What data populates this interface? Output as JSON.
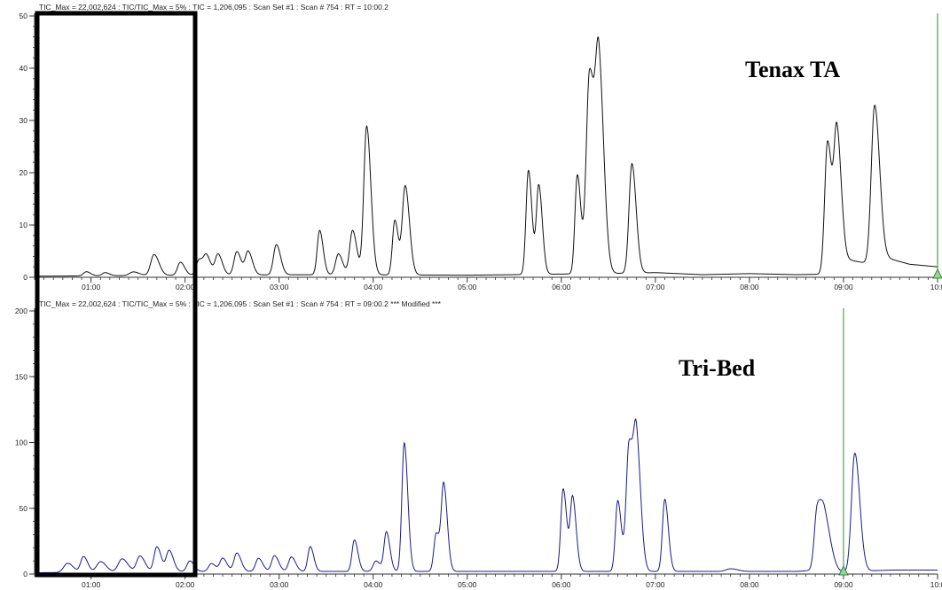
{
  "chart_data": [
    {
      "type": "line",
      "header": "TIC_Max = 22,002,624 : TIC/TIC_Max = 5% : TIC = 1,206,095 : Scan Set #1 : Scan #   754 : RT = 10:00.2",
      "annotation": "Tenax TA",
      "x_unit": "retention time (min)",
      "xlim": [
        0.4,
        10.0
      ],
      "ylim": [
        0,
        50
      ],
      "x_ticks": [
        {
          "value": 1,
          "label": "01:00"
        },
        {
          "value": 2,
          "label": "02:00"
        },
        {
          "value": 3,
          "label": "03:00"
        },
        {
          "value": 4,
          "label": "04:00"
        },
        {
          "value": 5,
          "label": "05:00"
        },
        {
          "value": 6,
          "label": "06:00"
        },
        {
          "value": 7,
          "label": "07:00"
        },
        {
          "value": 8,
          "label": "08:00"
        },
        {
          "value": 9,
          "label": "09:00"
        },
        {
          "value": 10,
          "label": "10:0"
        }
      ],
      "y_ticks": [
        {
          "value": 0,
          "label": "0"
        },
        {
          "value": 10,
          "label": "10"
        },
        {
          "value": 20,
          "label": "20"
        },
        {
          "value": 30,
          "label": "30"
        },
        {
          "value": 40,
          "label": "40"
        },
        {
          "value": 50,
          "label": "50"
        }
      ],
      "marker_rt": 10.0,
      "baseline": [
        [
          0.4,
          0.2
        ],
        [
          2.0,
          0.4
        ],
        [
          3.5,
          0.5
        ],
        [
          5.0,
          0.4
        ],
        [
          5.5,
          0.5
        ],
        [
          6.8,
          0.8
        ],
        [
          7.0,
          0.9
        ],
        [
          7.5,
          0.5
        ],
        [
          8.0,
          0.7
        ],
        [
          8.5,
          0.5
        ],
        [
          8.8,
          0.6
        ],
        [
          9.0,
          3.5
        ],
        [
          9.3,
          2.5
        ],
        [
          9.4,
          4.0
        ],
        [
          9.7,
          2.5
        ],
        [
          10.0,
          2.0
        ]
      ],
      "peaks": [
        [
          0.95,
          0.8,
          0.03
        ],
        [
          1.15,
          0.6,
          0.03
        ],
        [
          1.45,
          0.7,
          0.04
        ],
        [
          1.67,
          4.0,
          0.035
        ],
        [
          1.95,
          2.5,
          0.03
        ],
        [
          2.15,
          3.0,
          0.03
        ],
        [
          2.23,
          3.4,
          0.03
        ],
        [
          2.35,
          4.0,
          0.03
        ],
        [
          2.55,
          4.5,
          0.03
        ],
        [
          2.67,
          4.5,
          0.03
        ],
        [
          2.97,
          5.8,
          0.03
        ],
        [
          3.43,
          8.5,
          0.025
        ],
        [
          3.63,
          4.0,
          0.03
        ],
        [
          3.78,
          8.5,
          0.03
        ],
        [
          3.93,
          28.5,
          0.03
        ],
        [
          4.23,
          10.5,
          0.025
        ],
        [
          4.34,
          17.0,
          0.03
        ],
        [
          5.65,
          20.0,
          0.025
        ],
        [
          5.76,
          17.0,
          0.025
        ],
        [
          6.17,
          19.0,
          0.025
        ],
        [
          6.3,
          38.5,
          0.035
        ],
        [
          6.4,
          38.0,
          0.035
        ],
        [
          6.75,
          21.0,
          0.03
        ],
        [
          8.83,
          25.0,
          0.03
        ],
        [
          8.93,
          25.0,
          0.03
        ],
        [
          9.33,
          30.0,
          0.035
        ]
      ],
      "line_color": "#111111"
    },
    {
      "type": "line",
      "header": "TIC_Max = 22,002,624 : TIC/TIC_Max = 5% : TIC = 1,206,095 : Scan Set #1 : Scan #   754 : RT = 09:00.2 *** Modified ***",
      "annotation": "Tri-Bed",
      "x_unit": "retention time (min)",
      "xlim": [
        0.4,
        10.0
      ],
      "ylim": [
        0,
        200
      ],
      "x_ticks": [
        {
          "value": 1,
          "label": "01:00"
        },
        {
          "value": 2,
          "label": "02:00"
        },
        {
          "value": 3,
          "label": "03:00"
        },
        {
          "value": 4,
          "label": "04:00"
        },
        {
          "value": 5,
          "label": "05:00"
        },
        {
          "value": 6,
          "label": "06:00"
        },
        {
          "value": 7,
          "label": "07:00"
        },
        {
          "value": 8,
          "label": "08:00"
        },
        {
          "value": 9,
          "label": "09:00"
        },
        {
          "value": 10,
          "label": "10:0"
        }
      ],
      "y_ticks": [
        {
          "value": 0,
          "label": "0"
        },
        {
          "value": 50,
          "label": "50"
        },
        {
          "value": 100,
          "label": "100"
        },
        {
          "value": 150,
          "label": "150"
        },
        {
          "value": 200,
          "label": "200"
        }
      ],
      "marker_rt": 9.0,
      "baseline": [
        [
          0.4,
          1
        ],
        [
          2.0,
          2
        ],
        [
          5.0,
          2
        ],
        [
          5.5,
          2
        ],
        [
          7.0,
          2
        ],
        [
          8.5,
          2
        ],
        [
          8.9,
          4
        ],
        [
          9.0,
          1
        ],
        [
          9.1,
          2
        ],
        [
          9.5,
          3
        ],
        [
          10.0,
          3
        ]
      ],
      "peaks": [
        [
          0.75,
          7,
          0.04
        ],
        [
          0.92,
          12,
          0.03
        ],
        [
          1.1,
          8,
          0.04
        ],
        [
          1.33,
          10,
          0.04
        ],
        [
          1.52,
          12,
          0.035
        ],
        [
          1.7,
          19,
          0.03
        ],
        [
          1.83,
          16,
          0.03
        ],
        [
          2.05,
          8,
          0.03
        ],
        [
          2.28,
          6,
          0.03
        ],
        [
          2.4,
          10,
          0.03
        ],
        [
          2.55,
          14,
          0.03
        ],
        [
          2.78,
          10,
          0.03
        ],
        [
          2.95,
          12,
          0.03
        ],
        [
          3.13,
          11,
          0.03
        ],
        [
          3.33,
          19,
          0.025
        ],
        [
          3.8,
          24,
          0.025
        ],
        [
          4.03,
          8,
          0.03
        ],
        [
          4.14,
          30,
          0.025
        ],
        [
          4.33,
          98,
          0.025
        ],
        [
          4.67,
          29,
          0.025
        ],
        [
          4.75,
          65,
          0.025
        ],
        [
          6.02,
          63,
          0.025
        ],
        [
          6.12,
          56,
          0.025
        ],
        [
          6.6,
          54,
          0.025
        ],
        [
          6.72,
          97,
          0.03
        ],
        [
          6.8,
          92,
          0.03
        ],
        [
          7.1,
          55,
          0.025
        ],
        [
          7.8,
          2,
          0.05
        ],
        [
          8.72,
          45,
          0.03
        ],
        [
          8.8,
          38,
          0.04
        ],
        [
          9.12,
          90,
          0.035
        ]
      ],
      "line_color": "#1a1a8c"
    }
  ],
  "colors": {
    "marker": "#2e8b2e",
    "highlight_box": "#000000",
    "axis": "#333333"
  }
}
